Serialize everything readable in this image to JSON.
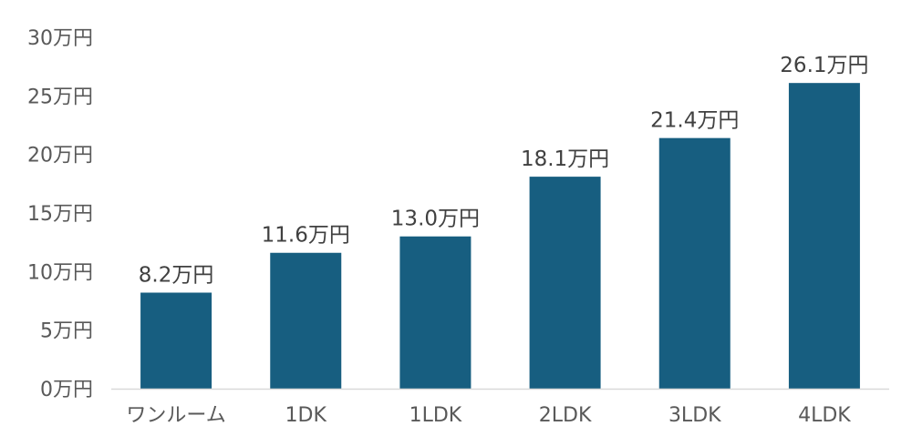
{
  "chart_data": {
    "type": "bar",
    "categories": [
      "ワンルーム",
      "1DK",
      "1LDK",
      "2LDK",
      "3LDK",
      "4LDK"
    ],
    "values": [
      8.2,
      11.6,
      13.0,
      18.1,
      21.4,
      26.1
    ],
    "data_labels": [
      "8.2万円",
      "11.6万円",
      "13.0万円",
      "18.1万円",
      "21.4万円",
      "26.1万円"
    ],
    "yticks": [
      0,
      5,
      10,
      15,
      20,
      25,
      30
    ],
    "ytick_labels": [
      "0万円",
      "5万円",
      "10万円",
      "15万円",
      "20万円",
      "25万円",
      "30万円"
    ],
    "ylim": [
      0,
      30
    ],
    "grid": false,
    "legend": "none",
    "colors": {
      "bar": "#175e80",
      "axis": "#d9d9d9"
    }
  }
}
